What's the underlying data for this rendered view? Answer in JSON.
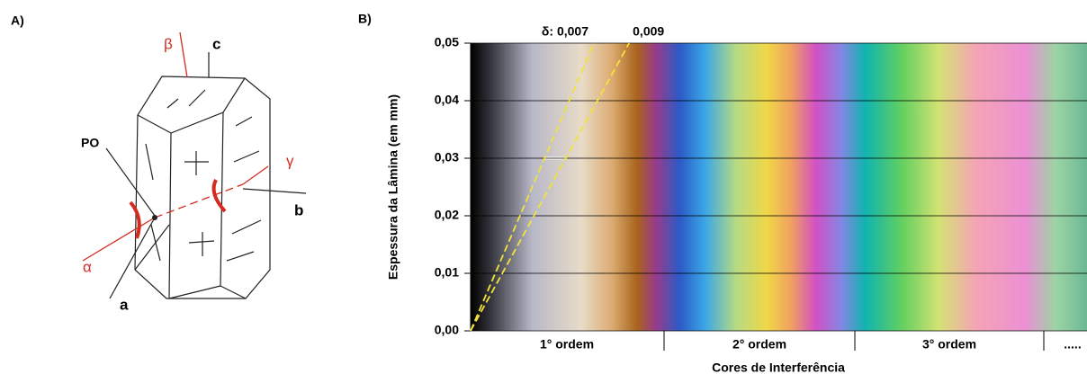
{
  "panel_a": {
    "label": "A)",
    "labels": {
      "po": "PO",
      "beta": "β",
      "c": "c",
      "gamma": "γ",
      "b": "b",
      "alpha": "α",
      "a": "a"
    }
  },
  "chart_data": {
    "type": "line",
    "label": "B)",
    "ylabel": "Espessura da Lâmina (em mm)",
    "xlabel": "Cores de Interferência",
    "categories": [
      "1° ordem",
      "2° ordem",
      "3° ordem",
      "....."
    ],
    "xlim": [
      0,
      1750
    ],
    "ylim": [
      0,
      0.05
    ],
    "yticks": [
      {
        "value": 0,
        "label": "0,00"
      },
      {
        "value": 0.01,
        "label": "0,01"
      },
      {
        "value": 0.02,
        "label": "0,02"
      },
      {
        "value": 0.03,
        "label": "0,03"
      },
      {
        "value": 0.04,
        "label": "0,04"
      },
      {
        "value": 0.05,
        "label": "0,05"
      }
    ],
    "grid": true,
    "series": [
      {
        "name": "δ: 0,007",
        "color": "#f2e23a",
        "x": [
          0,
          350
        ],
        "values": [
          0,
          0.05
        ]
      },
      {
        "name": "0,009",
        "color": "#f2e23a",
        "x": [
          0,
          450
        ],
        "values": [
          0,
          0.05
        ]
      }
    ]
  }
}
